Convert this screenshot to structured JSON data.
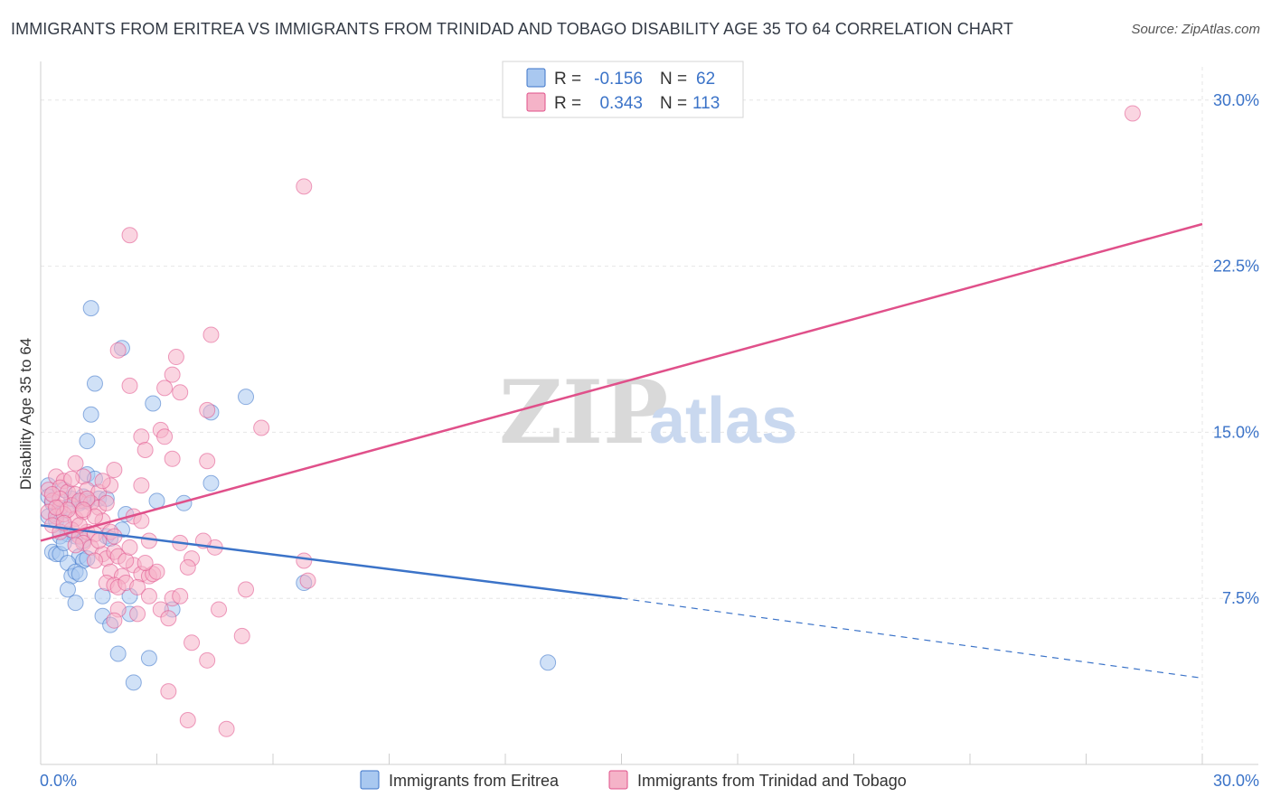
{
  "title": "IMMIGRANTS FROM ERITREA VS IMMIGRANTS FROM TRINIDAD AND TOBAGO DISABILITY AGE 35 TO 64 CORRELATION CHART",
  "source": "Source: ZipAtlas.com",
  "watermark": {
    "zip": "ZIP",
    "atlas": "atlas"
  },
  "colors": {
    "blue": "#3b73c8",
    "blue_fill": "#a9c8f0",
    "pink": "#e0508a",
    "pink_fill": "#f5b3c8",
    "grid": "#e6e6e6"
  },
  "legend": {
    "r_label": "R =",
    "n_label": "N =",
    "rows": [
      {
        "r": "-0.156",
        "n": "62"
      },
      {
        "r": "0.343",
        "n": "113"
      }
    ]
  },
  "chart_data": {
    "type": "scatter",
    "title": "IMMIGRANTS FROM ERITREA VS IMMIGRANTS FROM TRINIDAD AND TOBAGO DISABILITY AGE 35 TO 64 CORRELATION CHART",
    "xlabel": "",
    "ylabel": "Disability Age 35 to 64",
    "xlim": [
      0,
      30
    ],
    "ylim": [
      0,
      31.5
    ],
    "x_ticks": [
      {
        "v": 0,
        "label": "0.0%"
      },
      {
        "v": 30,
        "label": "30.0%"
      }
    ],
    "y_ticks": [
      {
        "v": 7.5,
        "label": "7.5%"
      },
      {
        "v": 15,
        "label": "15.0%"
      },
      {
        "v": 22.5,
        "label": "22.5%"
      },
      {
        "v": 30,
        "label": "30.0%"
      }
    ],
    "series": [
      {
        "name": "Immigrants from Eritrea",
        "color": "#3b73c8",
        "trend": {
          "x0": 0,
          "y0": 10.8,
          "x1": 15,
          "y1": 7.5,
          "dash_to_x": 30,
          "dash_to_y": 3.9
        },
        "points": [
          [
            1.3,
            20.6
          ],
          [
            2.1,
            18.8
          ],
          [
            1.4,
            17.2
          ],
          [
            1.3,
            15.8
          ],
          [
            1.2,
            14.6
          ],
          [
            2.9,
            16.3
          ],
          [
            4.4,
            15.9
          ],
          [
            5.3,
            16.6
          ],
          [
            4.4,
            12.7
          ],
          [
            1.2,
            13.1
          ],
          [
            1.4,
            12.9
          ],
          [
            1.5,
            12.0
          ],
          [
            1.7,
            12.0
          ],
          [
            2.2,
            11.3
          ],
          [
            1.2,
            11.9
          ],
          [
            3.0,
            11.9
          ],
          [
            3.7,
            11.8
          ],
          [
            0.2,
            12.6
          ],
          [
            0.2,
            12.1
          ],
          [
            0.3,
            11.8
          ],
          [
            0.4,
            11.3
          ],
          [
            0.5,
            11.5
          ],
          [
            0.7,
            11.6
          ],
          [
            0.8,
            12.0
          ],
          [
            1.0,
            11.8
          ],
          [
            1.1,
            11.9
          ],
          [
            0.2,
            11.2
          ],
          [
            0.4,
            11.0
          ],
          [
            0.6,
            10.8
          ],
          [
            0.7,
            10.4
          ],
          [
            0.5,
            10.3
          ],
          [
            0.9,
            10.3
          ],
          [
            1.1,
            10.1
          ],
          [
            1.7,
            10.3
          ],
          [
            1.8,
            10.2
          ],
          [
            2.1,
            10.6
          ],
          [
            0.3,
            9.6
          ],
          [
            0.4,
            9.5
          ],
          [
            0.5,
            9.5
          ],
          [
            0.6,
            10.0
          ],
          [
            1.0,
            9.4
          ],
          [
            1.1,
            9.2
          ],
          [
            1.2,
            9.3
          ],
          [
            0.7,
            9.1
          ],
          [
            0.8,
            8.5
          ],
          [
            0.9,
            8.7
          ],
          [
            1.0,
            8.6
          ],
          [
            0.7,
            7.9
          ],
          [
            0.9,
            7.3
          ],
          [
            1.6,
            7.6
          ],
          [
            2.3,
            7.6
          ],
          [
            1.6,
            6.7
          ],
          [
            1.8,
            6.3
          ],
          [
            2.3,
            6.8
          ],
          [
            3.4,
            7.0
          ],
          [
            2.0,
            5.0
          ],
          [
            2.8,
            4.8
          ],
          [
            2.4,
            3.7
          ],
          [
            6.8,
            8.2
          ],
          [
            13.1,
            4.6
          ],
          [
            1.1,
            12.1
          ],
          [
            0.6,
            12.4
          ]
        ]
      },
      {
        "name": "Immigrants from Trinidad and Tobago",
        "color": "#e0508a",
        "trend": {
          "x0": 0,
          "y0": 10.1,
          "x1": 30,
          "y1": 24.4
        },
        "points": [
          [
            28.2,
            29.4
          ],
          [
            6.8,
            26.1
          ],
          [
            2.3,
            23.9
          ],
          [
            4.4,
            19.4
          ],
          [
            2.0,
            18.7
          ],
          [
            3.5,
            18.4
          ],
          [
            3.4,
            17.6
          ],
          [
            2.3,
            17.1
          ],
          [
            3.2,
            17.0
          ],
          [
            3.6,
            16.8
          ],
          [
            4.3,
            16.0
          ],
          [
            5.7,
            15.2
          ],
          [
            3.1,
            15.1
          ],
          [
            3.2,
            14.8
          ],
          [
            2.6,
            14.8
          ],
          [
            2.7,
            14.2
          ],
          [
            3.4,
            13.8
          ],
          [
            4.3,
            13.7
          ],
          [
            1.9,
            13.3
          ],
          [
            0.9,
            13.6
          ],
          [
            0.4,
            13.0
          ],
          [
            0.6,
            12.8
          ],
          [
            1.1,
            13.0
          ],
          [
            2.6,
            12.6
          ],
          [
            0.2,
            12.4
          ],
          [
            0.5,
            12.5
          ],
          [
            0.7,
            12.3
          ],
          [
            0.9,
            12.2
          ],
          [
            1.2,
            12.4
          ],
          [
            1.5,
            12.3
          ],
          [
            1.8,
            12.6
          ],
          [
            0.3,
            11.9
          ],
          [
            0.5,
            11.6
          ],
          [
            0.8,
            11.7
          ],
          [
            1.0,
            11.9
          ],
          [
            1.3,
            11.8
          ],
          [
            1.5,
            11.6
          ],
          [
            1.7,
            11.8
          ],
          [
            0.2,
            11.4
          ],
          [
            0.4,
            11.2
          ],
          [
            0.6,
            11.3
          ],
          [
            0.9,
            11.1
          ],
          [
            1.1,
            11.4
          ],
          [
            1.6,
            11.0
          ],
          [
            2.4,
            11.2
          ],
          [
            2.6,
            11.0
          ],
          [
            0.3,
            10.8
          ],
          [
            0.5,
            10.5
          ],
          [
            0.8,
            10.6
          ],
          [
            1.0,
            10.3
          ],
          [
            1.2,
            10.5
          ],
          [
            1.4,
            10.4
          ],
          [
            1.8,
            10.5
          ],
          [
            1.1,
            10.0
          ],
          [
            1.3,
            9.8
          ],
          [
            1.6,
            9.5
          ],
          [
            1.7,
            9.3
          ],
          [
            1.9,
            9.6
          ],
          [
            1.4,
            9.2
          ],
          [
            2.0,
            9.4
          ],
          [
            2.4,
            9.0
          ],
          [
            1.8,
            8.7
          ],
          [
            2.1,
            8.5
          ],
          [
            2.6,
            8.6
          ],
          [
            2.8,
            8.5
          ],
          [
            2.9,
            8.6
          ],
          [
            3.0,
            8.7
          ],
          [
            1.7,
            8.2
          ],
          [
            1.9,
            8.1
          ],
          [
            2.0,
            8.0
          ],
          [
            2.2,
            8.2
          ],
          [
            2.5,
            8.0
          ],
          [
            2.8,
            7.6
          ],
          [
            3.4,
            7.5
          ],
          [
            3.6,
            7.6
          ],
          [
            2.0,
            7.0
          ],
          [
            2.5,
            6.8
          ],
          [
            3.1,
            7.0
          ],
          [
            3.3,
            6.6
          ],
          [
            1.9,
            6.5
          ],
          [
            4.6,
            7.0
          ],
          [
            5.3,
            7.9
          ],
          [
            3.9,
            9.3
          ],
          [
            4.5,
            9.8
          ],
          [
            4.2,
            10.1
          ],
          [
            3.6,
            10.0
          ],
          [
            2.8,
            10.1
          ],
          [
            3.8,
            8.9
          ],
          [
            6.8,
            9.2
          ],
          [
            6.9,
            8.3
          ],
          [
            3.9,
            5.5
          ],
          [
            5.2,
            5.8
          ],
          [
            4.3,
            4.7
          ],
          [
            3.3,
            3.3
          ],
          [
            3.8,
            2.0
          ],
          [
            4.8,
            1.6
          ],
          [
            0.5,
            12.0
          ],
          [
            0.7,
            11.5
          ],
          [
            1.2,
            12.0
          ],
          [
            1.4,
            11.2
          ],
          [
            0.6,
            10.9
          ],
          [
            1.0,
            10.8
          ],
          [
            1.5,
            10.1
          ],
          [
            2.2,
            9.2
          ],
          [
            2.7,
            9.1
          ],
          [
            0.9,
            9.9
          ],
          [
            1.9,
            10.3
          ],
          [
            2.3,
            9.8
          ],
          [
            1.6,
            12.8
          ],
          [
            0.8,
            12.9
          ],
          [
            0.3,
            12.2
          ],
          [
            1.1,
            11.5
          ],
          [
            0.4,
            11.6
          ]
        ]
      }
    ]
  },
  "bottom_legend": [
    "Immigrants from Eritrea",
    "Immigrants from Trinidad and Tobago"
  ]
}
